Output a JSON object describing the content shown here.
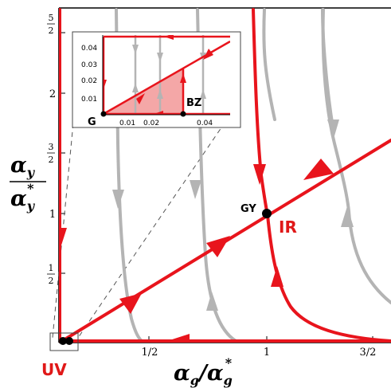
{
  "chart_data": {
    "type": "flow-diagram",
    "xlabel": {
      "main": "α",
      "sub": "g",
      "slash": "/α",
      "sub2": "g",
      "sup2": "*"
    },
    "ylabel": {
      "num": "α",
      "num_sub": "y",
      "den": "α",
      "den_sub": "y",
      "den_sup": "*"
    },
    "x_ticks": [
      {
        "value": 0.5,
        "label": "1/2"
      },
      {
        "value": 1,
        "label": "1"
      },
      {
        "value": 1.5,
        "label": "3/2"
      }
    ],
    "y_ticks": [
      {
        "value": 0.5,
        "num": "1",
        "den": "2"
      },
      {
        "value": 1,
        "label": "1"
      },
      {
        "value": 1.5,
        "num": "3",
        "den": "2"
      },
      {
        "value": 2,
        "label": "2"
      },
      {
        "value": 2.5,
        "num": "5",
        "den": "2"
      }
    ],
    "xlim": [
      0,
      1.65
    ],
    "ylim": [
      0,
      2.6
    ],
    "points": [
      {
        "name": "GY",
        "x": 1.0,
        "y": 1.0,
        "label": "GY"
      },
      {
        "name": "IR",
        "x": 1.0,
        "y": 1.0,
        "label": "IR"
      },
      {
        "name": "UV",
        "x": 0.0,
        "y": 0.0,
        "label": "UV"
      }
    ],
    "inset": {
      "x_ticks": [
        "0.01",
        "0.02",
        "0.04"
      ],
      "y_ticks": [
        "0.01",
        "0.02",
        "0.03",
        "0.04"
      ],
      "points": [
        {
          "label": "G"
        },
        {
          "label": "BZ"
        }
      ]
    },
    "colors": {
      "flow_red": "#e8141c",
      "flow_gray": "#b4b4b4",
      "shade": "#f4a7a7"
    }
  }
}
